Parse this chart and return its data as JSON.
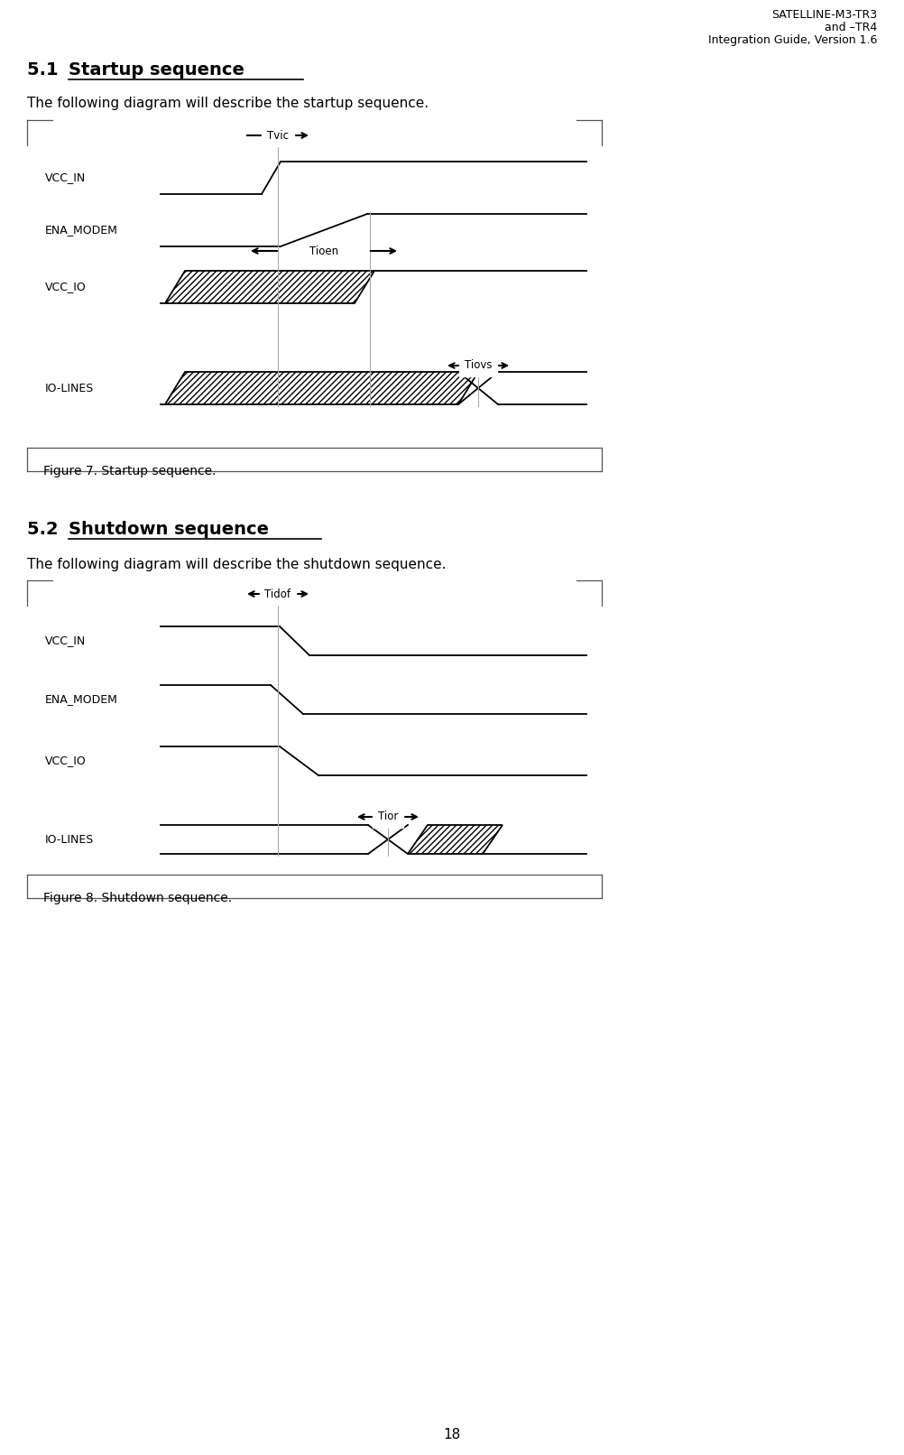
{
  "header_line1": "SATELLINE-M3-TR3",
  "header_line2": "and –TR4",
  "header_line3": "Integration Guide, Version 1.6",
  "section1_title": "5.1  Startup sequence",
  "section1_text": "The following diagram will describe the startup sequence.",
  "figure1_caption": "Figure 7. Startup sequence.",
  "section2_title": "5.2  Shutdown sequence",
  "section2_text": "The following diagram will describe the shutdown sequence.",
  "figure2_caption": "Figure 8. Shutdown sequence.",
  "page_number": "18",
  "bg_color": "#ffffff",
  "text_color": "#000000"
}
